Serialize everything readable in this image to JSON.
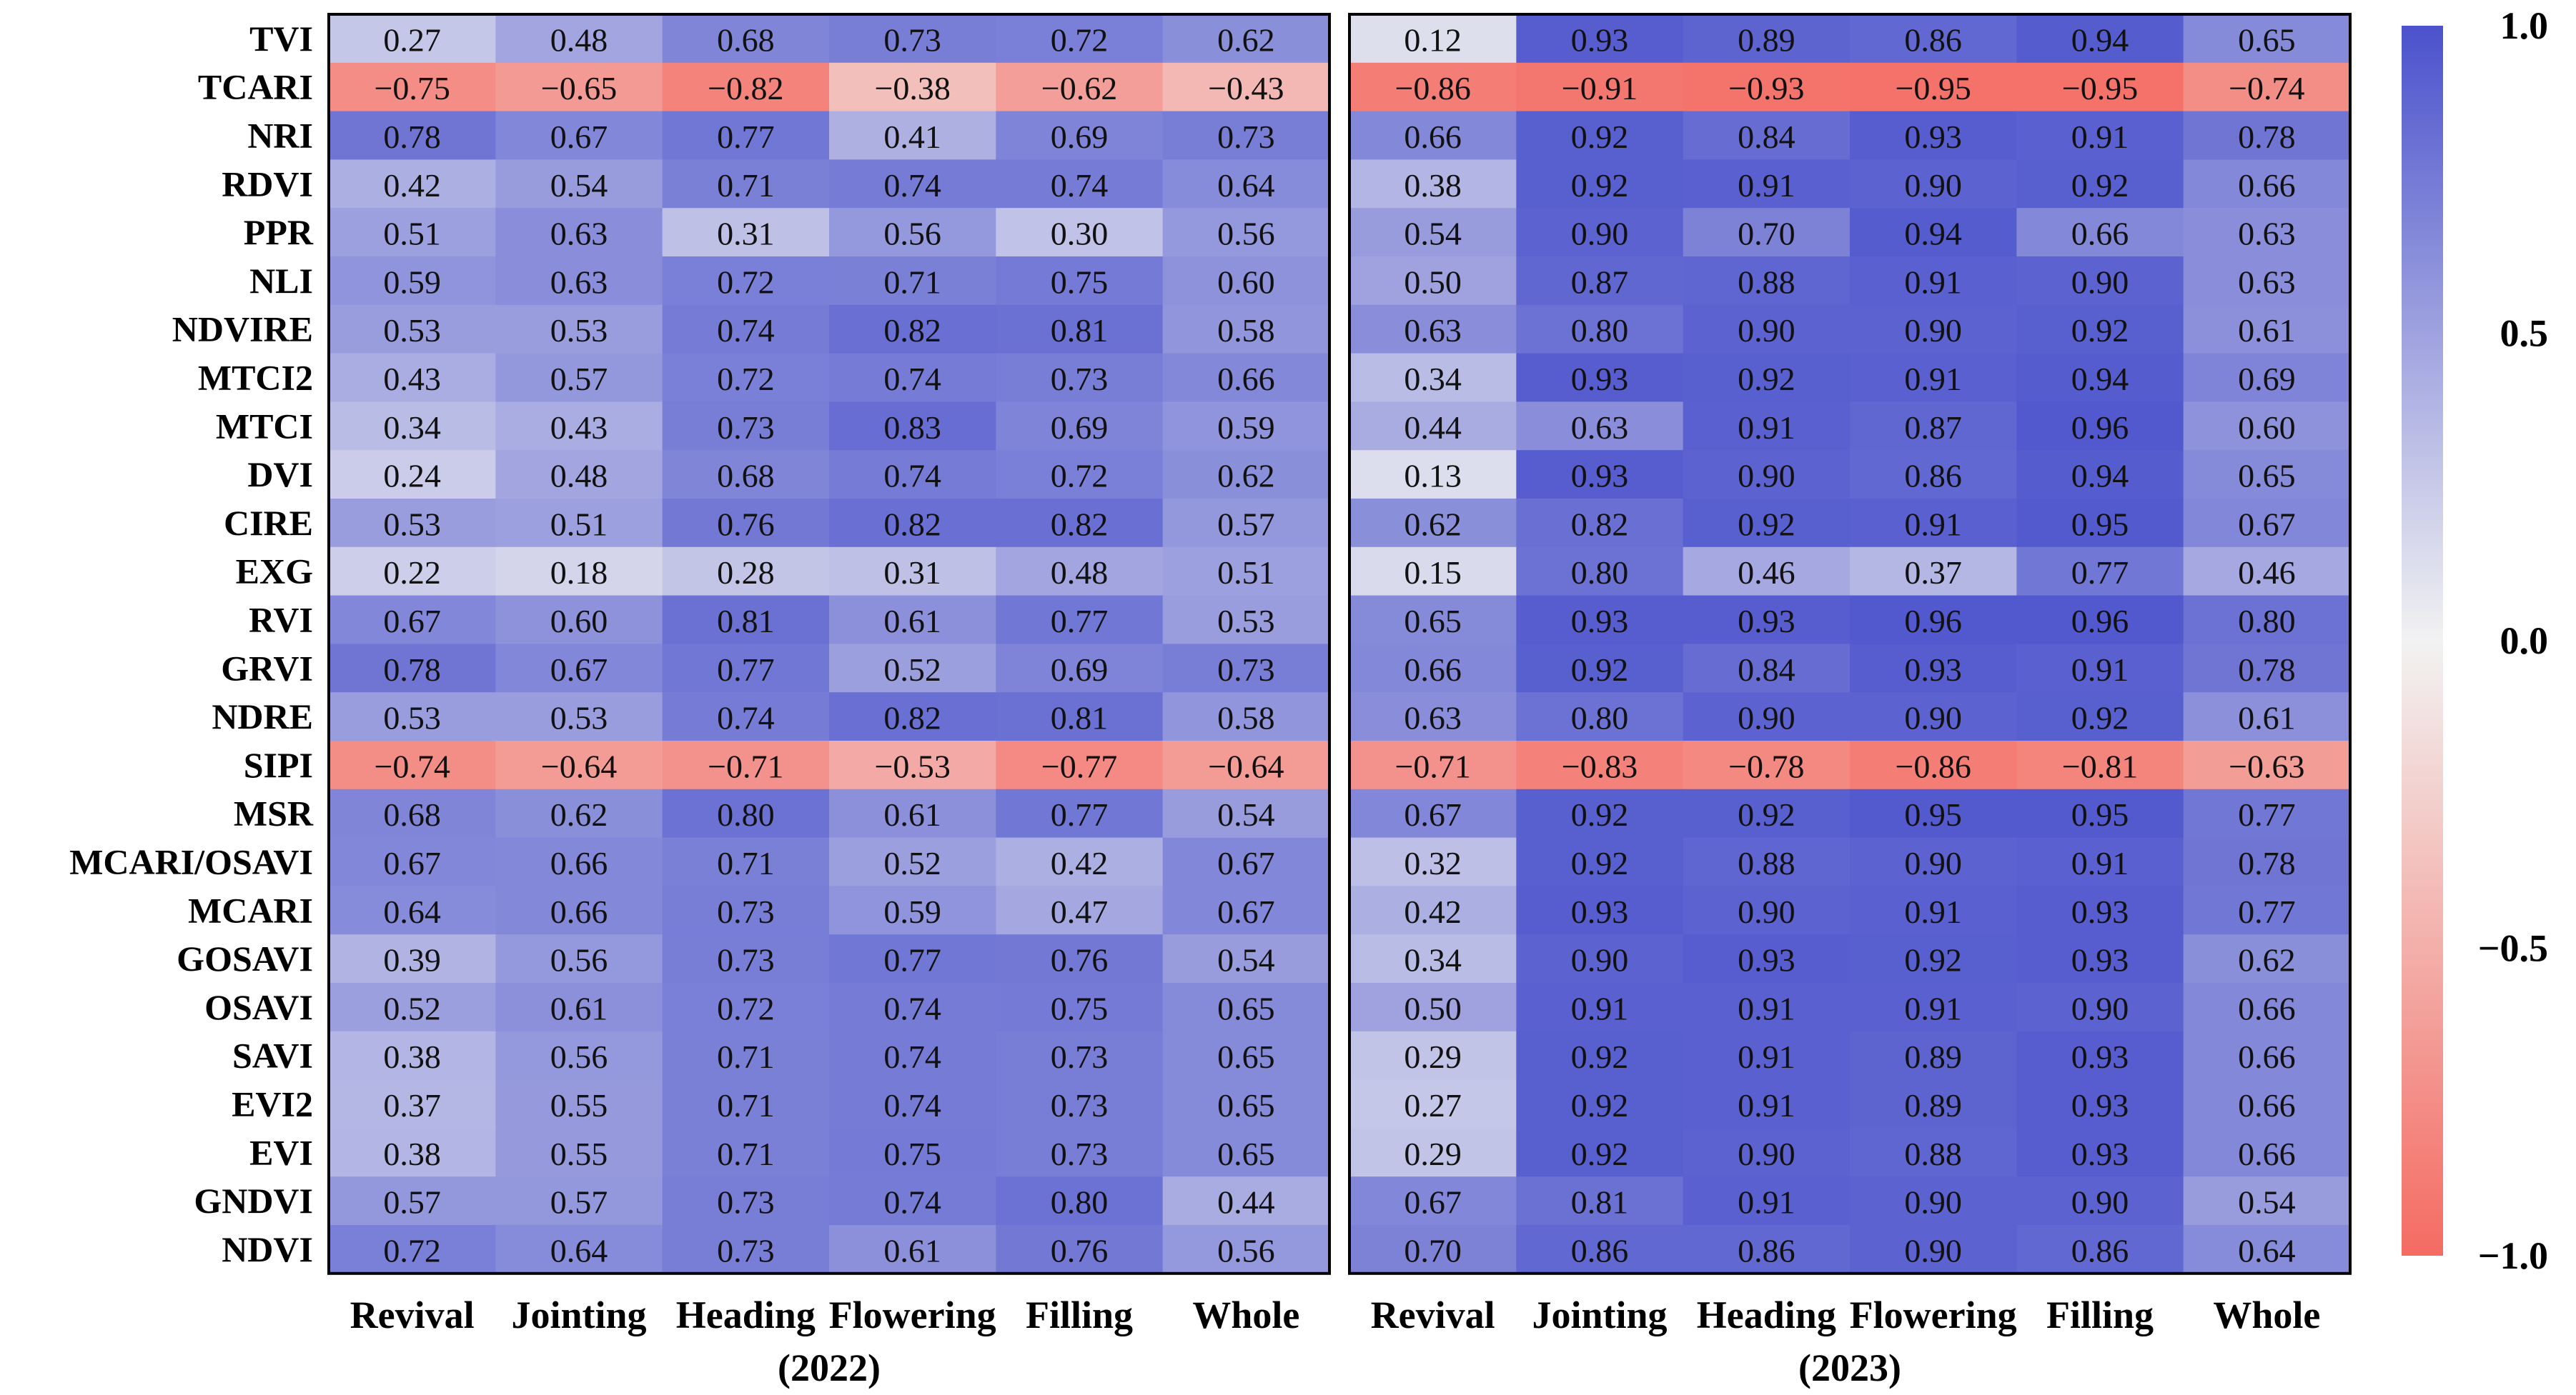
{
  "chart_data": {
    "type": "heatmap",
    "rows": [
      "TVI",
      "TCARI",
      "NRI",
      "RDVI",
      "PPR",
      "NLI",
      "NDVIRE",
      "MTCI2",
      "MTCI",
      "DVI",
      "CIRE",
      "EXG",
      "RVI",
      "GRVI",
      "NDRE",
      "SIPI",
      "MSR",
      "MCARI/OSAVI",
      "MCARI",
      "GOSAVI",
      "OSAVI",
      "SAVI",
      "EVI2",
      "EVI",
      "GNDVI",
      "NDVI"
    ],
    "columns": [
      "Revival",
      "Jointing",
      "Heading",
      "Flowering",
      "Filling",
      "Whole"
    ],
    "panels": [
      {
        "label": "(2022)",
        "values": [
          [
            "0.27",
            "0.48",
            "0.68",
            "0.73",
            "0.72",
            "0.62"
          ],
          [
            "−0.75",
            "−0.65",
            "−0.82",
            "−0.38",
            "−0.62",
            "−0.43"
          ],
          [
            "0.78",
            "0.67",
            "0.77",
            "0.41",
            "0.69",
            "0.73"
          ],
          [
            "0.42",
            "0.54",
            "0.71",
            "0.74",
            "0.74",
            "0.64"
          ],
          [
            "0.51",
            "0.63",
            "0.31",
            "0.56",
            "0.30",
            "0.56"
          ],
          [
            "0.59",
            "0.63",
            "0.72",
            "0.71",
            "0.75",
            "0.60"
          ],
          [
            "0.53",
            "0.53",
            "0.74",
            "0.82",
            "0.81",
            "0.58"
          ],
          [
            "0.43",
            "0.57",
            "0.72",
            "0.74",
            "0.73",
            "0.66"
          ],
          [
            "0.34",
            "0.43",
            "0.73",
            "0.83",
            "0.69",
            "0.59"
          ],
          [
            "0.24",
            "0.48",
            "0.68",
            "0.74",
            "0.72",
            "0.62"
          ],
          [
            "0.53",
            "0.51",
            "0.76",
            "0.82",
            "0.82",
            "0.57"
          ],
          [
            "0.22",
            "0.18",
            "0.28",
            "0.31",
            "0.48",
            "0.51"
          ],
          [
            "0.67",
            "0.60",
            "0.81",
            "0.61",
            "0.77",
            "0.53"
          ],
          [
            "0.78",
            "0.67",
            "0.77",
            "0.52",
            "0.69",
            "0.73"
          ],
          [
            "0.53",
            "0.53",
            "0.74",
            "0.82",
            "0.81",
            "0.58"
          ],
          [
            "−0.74",
            "−0.64",
            "−0.71",
            "−0.53",
            "−0.77",
            "−0.64"
          ],
          [
            "0.68",
            "0.62",
            "0.80",
            "0.61",
            "0.77",
            "0.54"
          ],
          [
            "0.67",
            "0.66",
            "0.71",
            "0.52",
            "0.42",
            "0.67"
          ],
          [
            "0.64",
            "0.66",
            "0.73",
            "0.59",
            "0.47",
            "0.67"
          ],
          [
            "0.39",
            "0.56",
            "0.73",
            "0.77",
            "0.76",
            "0.54"
          ],
          [
            "0.52",
            "0.61",
            "0.72",
            "0.74",
            "0.75",
            "0.65"
          ],
          [
            "0.38",
            "0.56",
            "0.71",
            "0.74",
            "0.73",
            "0.65"
          ],
          [
            "0.37",
            "0.55",
            "0.71",
            "0.74",
            "0.73",
            "0.65"
          ],
          [
            "0.38",
            "0.55",
            "0.71",
            "0.75",
            "0.73",
            "0.65"
          ],
          [
            "0.57",
            "0.57",
            "0.73",
            "0.74",
            "0.80",
            "0.44"
          ],
          [
            "0.72",
            "0.64",
            "0.73",
            "0.61",
            "0.76",
            "0.56"
          ]
        ]
      },
      {
        "label": "(2023)",
        "values": [
          [
            "0.12",
            "0.93",
            "0.89",
            "0.86",
            "0.94",
            "0.65"
          ],
          [
            "−0.86",
            "−0.91",
            "−0.93",
            "−0.95",
            "−0.95",
            "−0.74"
          ],
          [
            "0.66",
            "0.92",
            "0.84",
            "0.93",
            "0.91",
            "0.78"
          ],
          [
            "0.38",
            "0.92",
            "0.91",
            "0.90",
            "0.92",
            "0.66"
          ],
          [
            "0.54",
            "0.90",
            "0.70",
            "0.94",
            "0.66",
            "0.63"
          ],
          [
            "0.50",
            "0.87",
            "0.88",
            "0.91",
            "0.90",
            "0.63"
          ],
          [
            "0.63",
            "0.80",
            "0.90",
            "0.90",
            "0.92",
            "0.61"
          ],
          [
            "0.34",
            "0.93",
            "0.92",
            "0.91",
            "0.94",
            "0.69"
          ],
          [
            "0.44",
            "0.63",
            "0.91",
            "0.87",
            "0.96",
            "0.60"
          ],
          [
            "0.13",
            "0.93",
            "0.90",
            "0.86",
            "0.94",
            "0.65"
          ],
          [
            "0.62",
            "0.82",
            "0.92",
            "0.91",
            "0.95",
            "0.67"
          ],
          [
            "0.15",
            "0.80",
            "0.46",
            "0.37",
            "0.77",
            "0.46"
          ],
          [
            "0.65",
            "0.93",
            "0.93",
            "0.96",
            "0.96",
            "0.80"
          ],
          [
            "0.66",
            "0.92",
            "0.84",
            "0.93",
            "0.91",
            "0.78"
          ],
          [
            "0.63",
            "0.80",
            "0.90",
            "0.90",
            "0.92",
            "0.61"
          ],
          [
            "−0.71",
            "−0.83",
            "−0.78",
            "−0.86",
            "−0.81",
            "−0.63"
          ],
          [
            "0.67",
            "0.92",
            "0.92",
            "0.95",
            "0.95",
            "0.77"
          ],
          [
            "0.32",
            "0.92",
            "0.88",
            "0.90",
            "0.91",
            "0.78"
          ],
          [
            "0.42",
            "0.93",
            "0.90",
            "0.91",
            "0.93",
            "0.77"
          ],
          [
            "0.34",
            "0.90",
            "0.93",
            "0.92",
            "0.93",
            "0.62"
          ],
          [
            "0.50",
            "0.91",
            "0.91",
            "0.91",
            "0.90",
            "0.66"
          ],
          [
            "0.29",
            "0.92",
            "0.91",
            "0.89",
            "0.93",
            "0.66"
          ],
          [
            "0.27",
            "0.92",
            "0.91",
            "0.89",
            "0.93",
            "0.66"
          ],
          [
            "0.29",
            "0.92",
            "0.90",
            "0.88",
            "0.93",
            "0.66"
          ],
          [
            "0.67",
            "0.81",
            "0.91",
            "0.90",
            "0.90",
            "0.54"
          ],
          [
            "0.70",
            "0.86",
            "0.86",
            "0.90",
            "0.86",
            "0.64"
          ]
        ]
      }
    ],
    "colorbar": {
      "min": -1.0,
      "max": 1.0,
      "ticks": [
        "1.0",
        "0.5",
        "0.0",
        "−0.5",
        "−1.0"
      ],
      "colors": {
        "negative": "#f46b62",
        "neutral": "#f2f2f2",
        "positive": "#4b52cc"
      }
    }
  }
}
